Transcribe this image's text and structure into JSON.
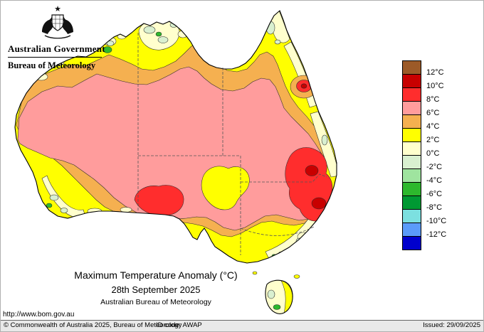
{
  "header": {
    "gov_title": "Australian Government",
    "bureau_title": "Bureau of Meteorology"
  },
  "map": {
    "title": "Maximum Temperature Anomaly (°C)",
    "date": "28th September 2025",
    "org": "Australian Bureau of Meteorology"
  },
  "url": "http://www.bom.gov.au",
  "legend": {
    "boundary_labels": [
      "12°C",
      "10°C",
      "8°C",
      "6°C",
      "4°C",
      "2°C",
      "0°C",
      "-2°C",
      "-4°C",
      "-6°C",
      "-8°C",
      "-10°C",
      "-12°C"
    ],
    "band_colors_top_to_bottom": [
      "#9c5a28",
      "#c80000",
      "#ff2d2d",
      "#ff9c9c",
      "#f5b050",
      "#ffff00",
      "#ffffcd",
      "#d9f0d0",
      "#9fe49f",
      "#2db82d",
      "#009933",
      "#7ce0e0",
      "#5b9bfa",
      "#0000cd"
    ]
  },
  "map_palette": {
    "yellow": "#ffff00",
    "cream": "#ffffcd",
    "pale_green": "#d9f0d0",
    "green": "#2db82d",
    "orange": "#f5b050",
    "pink": "#ff9c9c",
    "red": "#ff2d2d",
    "dark_red": "#c80000"
  },
  "footer": {
    "copyright": "© Commonwealth of Australia 2025, Bureau of Meteorology",
    "id_code": "ID code: AWAP",
    "issued": "Issued: 29/09/2025"
  }
}
